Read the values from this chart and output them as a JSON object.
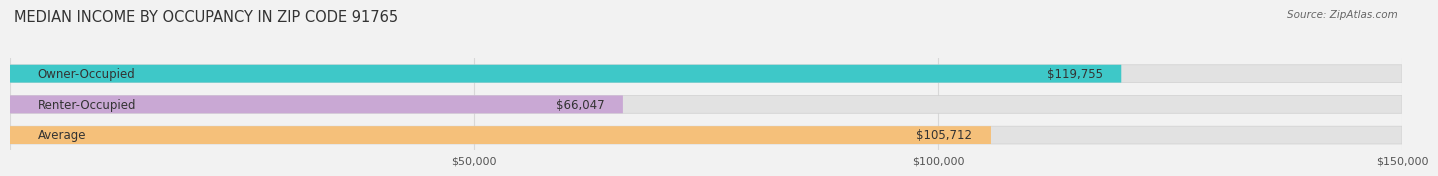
{
  "title": "MEDIAN INCOME BY OCCUPANCY IN ZIP CODE 91765",
  "source": "Source: ZipAtlas.com",
  "categories": [
    "Owner-Occupied",
    "Renter-Occupied",
    "Average"
  ],
  "values": [
    119755,
    66047,
    105712
  ],
  "value_labels": [
    "$119,755",
    "$66,047",
    "$105,712"
  ],
  "bar_colors": [
    "#3ec8c8",
    "#c9a8d4",
    "#f5c07a"
  ],
  "xlim_max": 150000,
  "xticks": [
    50000,
    100000,
    150000
  ],
  "xtick_labels": [
    "$50,000",
    "$100,000",
    "$150,000"
  ],
  "title_fontsize": 10.5,
  "source_fontsize": 7.5,
  "label_fontsize": 8.5,
  "value_fontsize": 8.5,
  "bar_height": 0.58,
  "background_color": "#f2f2f2",
  "bar_bg_color": "#e2e2e2",
  "bar_border_color": "#d0d0d0",
  "grid_color": "#d8d8d8",
  "text_color": "#333333",
  "source_color": "#666666"
}
